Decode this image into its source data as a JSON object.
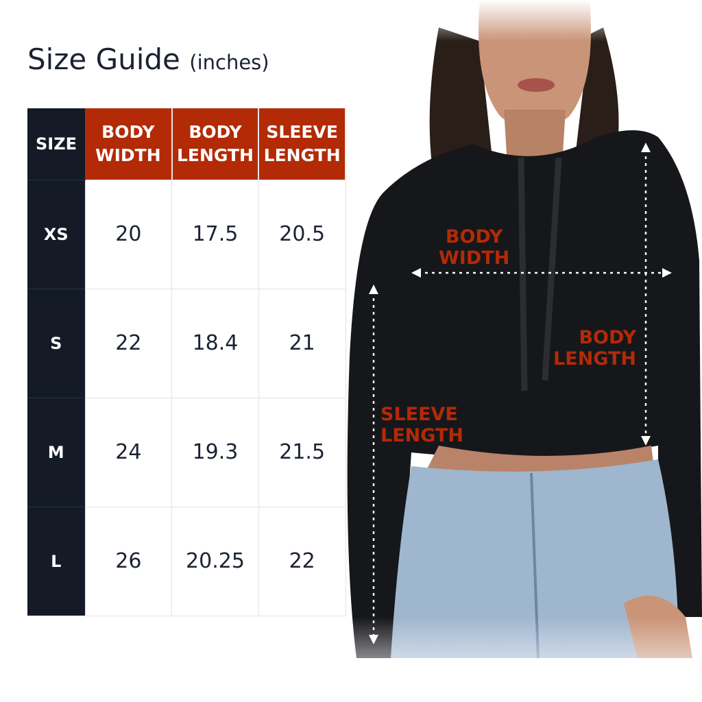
{
  "title": {
    "main": "Size Guide",
    "unit": "(inches)"
  },
  "table": {
    "headers": [
      [
        "SIZE"
      ],
      [
        "BODY",
        "WIDTH"
      ],
      [
        "BODY",
        "LENGTH"
      ],
      [
        "SLEEVE",
        "LENGTH"
      ]
    ],
    "rows": [
      {
        "size": "XS",
        "body_width": "20",
        "body_length": "17.5",
        "sleeve_length": "20.5"
      },
      {
        "size": "S",
        "body_width": "22",
        "body_length": "18.4",
        "sleeve_length": "21"
      },
      {
        "size": "M",
        "body_width": "24",
        "body_length": "19.3",
        "sleeve_length": "21.5"
      },
      {
        "size": "L",
        "body_width": "26",
        "body_length": "20.25",
        "sleeve_length": "22"
      }
    ]
  },
  "annotations": {
    "body_width": [
      "BODY",
      "WIDTH"
    ],
    "body_length": [
      "BODY",
      "LENGTH"
    ],
    "sleeve_length": [
      "SLEEVE",
      "LENGTH"
    ]
  },
  "colors": {
    "accent": "#b32a06",
    "dark": "#141b26"
  }
}
